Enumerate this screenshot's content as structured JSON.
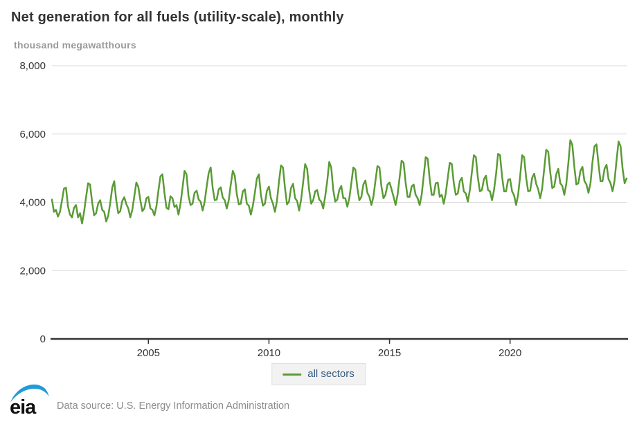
{
  "header": {
    "title": "Net generation for all fuels (utility-scale), monthly",
    "subtitle": "thousand megawatthours"
  },
  "legend": {
    "items": [
      {
        "label": "all sectors",
        "color": "#5a9b35"
      }
    ]
  },
  "footer": {
    "logo_text": "eia",
    "source_text": "Data source: U.S. Energy Information Administration"
  },
  "colors": {
    "line": "#5a9b35",
    "grid": "#d9d9d9",
    "axis": "#333333",
    "tick_text": "#333333",
    "title_text": "#333333",
    "subtitle_text": "#999999",
    "legend_text": "#335a7d",
    "legend_bg": "#f2f2f2",
    "legend_border": "#e0e0e0",
    "logo_blue": "#1f9cd8",
    "logo_black": "#111111",
    "source_text": "#8c8c8c"
  },
  "chart_data": {
    "type": "line",
    "title": "Net generation for all fuels (utility-scale), monthly",
    "ylabel": "thousand megawatthours",
    "xlabel": "",
    "unit": "thousand megawatthours",
    "frequency": "monthly",
    "ylim": [
      0,
      8000
    ],
    "y_ticks": [
      0,
      2000,
      4000,
      6000,
      8000
    ],
    "x_ticks": [
      2005,
      2010,
      2015,
      2020
    ],
    "grid": "horizontal-only",
    "legend_position": "bottom-center",
    "start_year": 2001,
    "start_month": 1,
    "end_year": 2024,
    "end_month": 11,
    "series": [
      {
        "name": "all sectors",
        "color": "#5a9b35",
        "values_by_year": [
          [
            4080,
            3720,
            3780,
            3580,
            3720,
            4050,
            4400,
            4430,
            3880,
            3640,
            3560,
            3840
          ],
          [
            3920,
            3560,
            3680,
            3380,
            3720,
            4150,
            4560,
            4520,
            4010,
            3620,
            3680,
            3960
          ],
          [
            4060,
            3780,
            3720,
            3440,
            3610,
            3980,
            4430,
            4620,
            4060,
            3680,
            3740,
            4040
          ],
          [
            4150,
            3950,
            3820,
            3560,
            3780,
            4180,
            4580,
            4450,
            4060,
            3740,
            3820,
            4120
          ],
          [
            4160,
            3820,
            3780,
            3620,
            3880,
            4340,
            4760,
            4820,
            4280,
            3840,
            3800,
            4180
          ],
          [
            4120,
            3860,
            3920,
            3640,
            3960,
            4420,
            4920,
            4820,
            4180,
            3920,
            3960,
            4280
          ],
          [
            4340,
            4080,
            4020,
            3760,
            4020,
            4460,
            4860,
            5020,
            4420,
            4060,
            4080,
            4380
          ],
          [
            4440,
            4140,
            4060,
            3820,
            4060,
            4520,
            4920,
            4780,
            4240,
            3940,
            3960,
            4320
          ],
          [
            4380,
            3960,
            3900,
            3640,
            3900,
            4280,
            4700,
            4820,
            4220,
            3900,
            3960,
            4340
          ],
          [
            4460,
            4120,
            3960,
            3720,
            4040,
            4600,
            5080,
            5020,
            4420,
            3940,
            4020,
            4420
          ],
          [
            4540,
            4120,
            4040,
            3760,
            4080,
            4580,
            5120,
            4980,
            4360,
            3960,
            4060,
            4320
          ],
          [
            4360,
            4080,
            4020,
            3820,
            4180,
            4620,
            5180,
            5020,
            4360,
            4020,
            4080,
            4360
          ],
          [
            4480,
            4120,
            4120,
            3870,
            4120,
            4560,
            5020,
            4960,
            4420,
            4060,
            4160,
            4520
          ],
          [
            4640,
            4280,
            4160,
            3920,
            4160,
            4620,
            5060,
            5020,
            4460,
            4120,
            4220,
            4520
          ],
          [
            4580,
            4380,
            4160,
            3920,
            4220,
            4720,
            5220,
            5160,
            4580,
            4160,
            4160,
            4460
          ],
          [
            4520,
            4220,
            4120,
            3920,
            4220,
            4760,
            5320,
            5280,
            4680,
            4220,
            4220,
            4560
          ],
          [
            4580,
            4160,
            4220,
            3960,
            4260,
            4720,
            5160,
            5120,
            4560,
            4220,
            4260,
            4620
          ],
          [
            4720,
            4320,
            4260,
            4020,
            4360,
            4880,
            5380,
            5320,
            4720,
            4320,
            4360,
            4680
          ],
          [
            4780,
            4360,
            4320,
            4060,
            4360,
            4820,
            5420,
            5380,
            4760,
            4320,
            4320,
            4660
          ],
          [
            4680,
            4320,
            4200,
            3920,
            4220,
            4760,
            5380,
            5320,
            4720,
            4320,
            4340,
            4720
          ],
          [
            4840,
            4540,
            4380,
            4120,
            4420,
            4980,
            5540,
            5480,
            4880,
            4420,
            4460,
            4820
          ],
          [
            4980,
            4560,
            4480,
            4220,
            4540,
            5140,
            5820,
            5680,
            5040,
            4520,
            4560,
            4920
          ],
          [
            5040,
            4620,
            4520,
            4280,
            4560,
            5180,
            5640,
            5700,
            5120,
            4620,
            4620,
            4980
          ],
          [
            5100,
            4680,
            4560,
            4320,
            4640,
            5240,
            5780,
            5640,
            4980,
            4560,
            4700
          ]
        ]
      }
    ]
  }
}
